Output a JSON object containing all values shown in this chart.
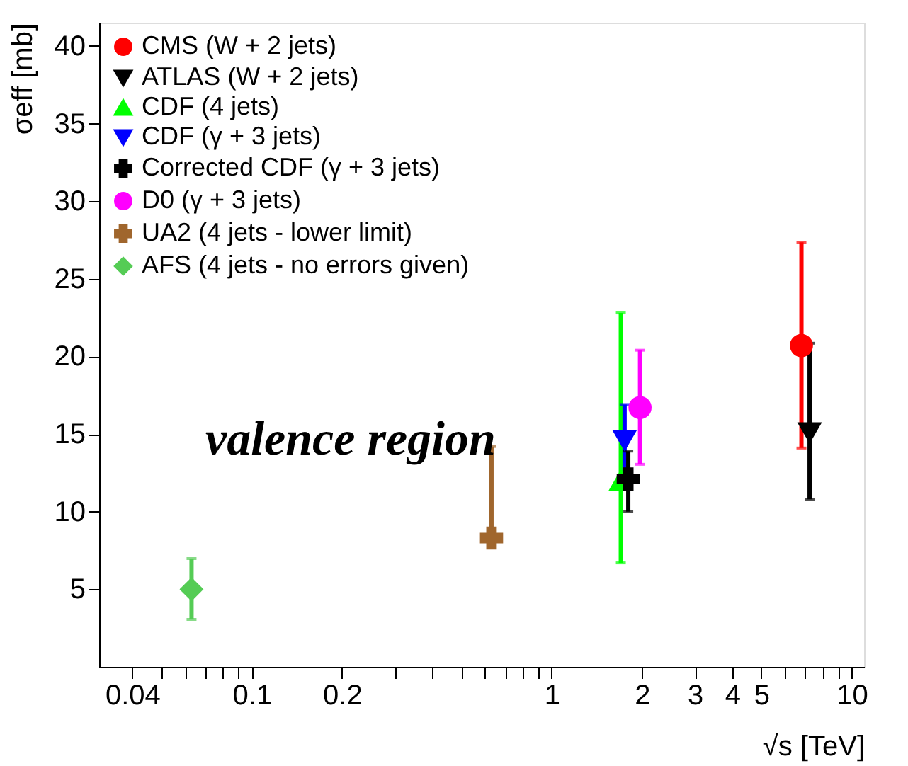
{
  "chart_data": {
    "type": "scatter",
    "xlabel": "√s [TeV]",
    "ylabel": "σeff [mb]",
    "log": "x",
    "xlim": [
      0.031,
      11
    ],
    "ylim": [
      0,
      41.5
    ],
    "xticks": [
      0.04,
      {
        "value": 0.05,
        "label": null
      },
      {
        "value": 0.06,
        "label": null
      },
      {
        "value": 0.07,
        "label": null
      },
      {
        "value": 0.08,
        "label": null
      },
      {
        "value": 0.09,
        "label": null
      },
      0.1,
      0.2,
      {
        "value": 0.3,
        "label": null
      },
      {
        "value": 0.4,
        "label": null
      },
      {
        "value": 0.5,
        "label": null
      },
      {
        "value": 0.6,
        "label": null
      },
      {
        "value": 0.7,
        "label": null
      },
      {
        "value": 0.8,
        "label": null
      },
      {
        "value": 0.9,
        "label": null
      },
      1,
      2,
      3,
      4,
      5,
      {
        "value": 6,
        "label": null
      },
      {
        "value": 7,
        "label": null
      },
      {
        "value": 8,
        "label": null
      },
      {
        "value": 9,
        "label": null
      },
      10
    ],
    "yticks": [
      5,
      10,
      15,
      20,
      25,
      30,
      35,
      40
    ],
    "legend": "top left",
    "grid": false,
    "annotations": [
      "valence region"
    ],
    "series": [
      {
        "name": "CMS (W + 2 jets)",
        "color": "#ff0000",
        "marker": "circle",
        "x": [
          6.8
        ],
        "values": [
          20.7
        ],
        "errors": [
          [
            14.1,
            27.35
          ]
        ]
      },
      {
        "name": "ATLAS (W + 2 jets)",
        "color": "#000000",
        "marker": "triangle-down",
        "x": [
          7.24
        ],
        "values": [
          15.1
        ],
        "errors": [
          [
            10.8,
            20.85
          ]
        ]
      },
      {
        "name": "CDF (4 jets)",
        "color": "#00ff00",
        "marker": "triangle",
        "x": [
          1.7
        ],
        "values": [
          12.0
        ],
        "errors": [
          [
            6.7,
            22.8
          ]
        ]
      },
      {
        "name": "CDF (γ + 3 jets)",
        "color": "#0000ff",
        "marker": "triangle-down",
        "x": [
          1.75
        ],
        "values": [
          14.6
        ],
        "errors": [
          [
            12.0,
            16.9
          ]
        ]
      },
      {
        "name": "Corrected CDF (γ + 3 jets)",
        "color": "#000000",
        "marker": "cross",
        "x": [
          1.8
        ],
        "values": [
          12.1
        ],
        "errors": [
          [
            10.0,
            13.9
          ]
        ]
      },
      {
        "name": "D0 (γ + 3 jets)",
        "color": "#ff00ff",
        "marker": "circle",
        "x": [
          1.97
        ],
        "values": [
          16.7
        ],
        "errors": [
          [
            13.05,
            20.4
          ]
        ]
      },
      {
        "name": "UA2 (4 jets - lower limit)",
        "color": "#a0662d",
        "marker": "cross",
        "x": [
          0.63
        ],
        "values": [
          8.3
        ],
        "errors": [
          [
            8.3,
            14.2
          ]
        ]
      },
      {
        "name": "AFS (4 jets - no errors given)",
        "color": "#55cc55",
        "marker": "diamond",
        "x": [
          0.063
        ],
        "values": [
          5.0
        ],
        "errors": [
          [
            3.05,
            6.98
          ]
        ]
      }
    ]
  }
}
